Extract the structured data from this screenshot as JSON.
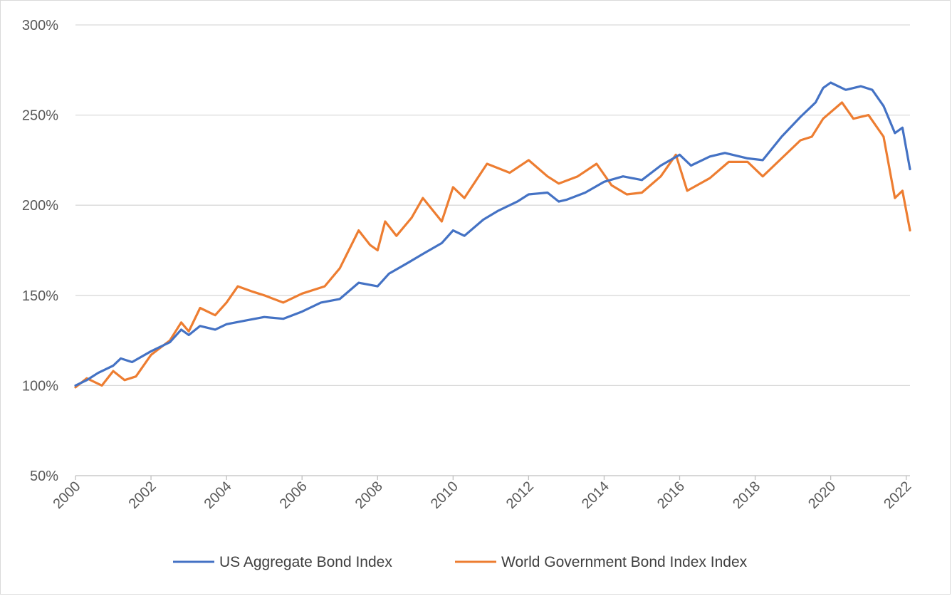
{
  "chart_data": {
    "type": "line",
    "title": "",
    "xlabel": "",
    "ylabel": "",
    "xlim": [
      2000,
      2022.1
    ],
    "ylim": [
      50,
      300
    ],
    "y_ticks": [
      {
        "value": 50,
        "label": "50%"
      },
      {
        "value": 100,
        "label": "100%"
      },
      {
        "value": 150,
        "label": "150%"
      },
      {
        "value": 200,
        "label": "200%"
      },
      {
        "value": 250,
        "label": "250%"
      },
      {
        "value": 300,
        "label": "300%"
      }
    ],
    "x_ticks": [
      {
        "value": 2000,
        "label": "2000"
      },
      {
        "value": 2002,
        "label": "2002"
      },
      {
        "value": 2004,
        "label": "2004"
      },
      {
        "value": 2006,
        "label": "2006"
      },
      {
        "value": 2008,
        "label": "2008"
      },
      {
        "value": 2010,
        "label": "2010"
      },
      {
        "value": 2012,
        "label": "2012"
      },
      {
        "value": 2014,
        "label": "2014"
      },
      {
        "value": 2016,
        "label": "2016"
      },
      {
        "value": 2018,
        "label": "2018"
      },
      {
        "value": 2020,
        "label": "2020"
      },
      {
        "value": 2022,
        "label": "2022"
      }
    ],
    "grid": "horizontal",
    "legend_position": "bottom",
    "series": [
      {
        "name": "US Aggregate Bond Index",
        "color": "#4472c4",
        "points": [
          [
            2000.0,
            100
          ],
          [
            2000.3,
            103
          ],
          [
            2000.6,
            107
          ],
          [
            2001.0,
            111
          ],
          [
            2001.2,
            115
          ],
          [
            2001.5,
            113
          ],
          [
            2002.0,
            119
          ],
          [
            2002.5,
            124
          ],
          [
            2002.8,
            131
          ],
          [
            2003.0,
            128
          ],
          [
            2003.3,
            133
          ],
          [
            2003.7,
            131
          ],
          [
            2004.0,
            134
          ],
          [
            2004.5,
            136
          ],
          [
            2005.0,
            138
          ],
          [
            2005.5,
            137
          ],
          [
            2006.0,
            141
          ],
          [
            2006.5,
            146
          ],
          [
            2007.0,
            148
          ],
          [
            2007.5,
            157
          ],
          [
            2008.0,
            155
          ],
          [
            2008.3,
            162
          ],
          [
            2008.8,
            168
          ],
          [
            2009.2,
            173
          ],
          [
            2009.7,
            179
          ],
          [
            2010.0,
            186
          ],
          [
            2010.3,
            183
          ],
          [
            2010.8,
            192
          ],
          [
            2011.2,
            197
          ],
          [
            2011.7,
            202
          ],
          [
            2012.0,
            206
          ],
          [
            2012.5,
            207
          ],
          [
            2012.8,
            202
          ],
          [
            2013.0,
            203
          ],
          [
            2013.5,
            207
          ],
          [
            2014.0,
            213
          ],
          [
            2014.5,
            216
          ],
          [
            2015.0,
            214
          ],
          [
            2015.5,
            222
          ],
          [
            2016.0,
            228
          ],
          [
            2016.3,
            222
          ],
          [
            2016.8,
            227
          ],
          [
            2017.2,
            229
          ],
          [
            2017.8,
            226
          ],
          [
            2018.2,
            225
          ],
          [
            2018.7,
            238
          ],
          [
            2019.2,
            249
          ],
          [
            2019.6,
            257
          ],
          [
            2019.8,
            265
          ],
          [
            2020.0,
            268
          ],
          [
            2020.4,
            264
          ],
          [
            2020.8,
            266
          ],
          [
            2021.1,
            264
          ],
          [
            2021.4,
            255
          ],
          [
            2021.7,
            240
          ],
          [
            2021.9,
            243
          ],
          [
            2022.1,
            220
          ]
        ]
      },
      {
        "name": "World Government Bond Index Index",
        "color": "#ed7d31",
        "points": [
          [
            2000.0,
            99
          ],
          [
            2000.3,
            104
          ],
          [
            2000.7,
            100
          ],
          [
            2001.0,
            108
          ],
          [
            2001.3,
            103
          ],
          [
            2001.6,
            105
          ],
          [
            2002.0,
            117
          ],
          [
            2002.5,
            125
          ],
          [
            2002.8,
            135
          ],
          [
            2003.0,
            130
          ],
          [
            2003.3,
            143
          ],
          [
            2003.7,
            139
          ],
          [
            2004.0,
            146
          ],
          [
            2004.3,
            155
          ],
          [
            2004.7,
            152
          ],
          [
            2005.0,
            150
          ],
          [
            2005.5,
            146
          ],
          [
            2006.0,
            151
          ],
          [
            2006.6,
            155
          ],
          [
            2007.0,
            165
          ],
          [
            2007.5,
            186
          ],
          [
            2007.8,
            178
          ],
          [
            2008.0,
            175
          ],
          [
            2008.2,
            191
          ],
          [
            2008.5,
            183
          ],
          [
            2008.9,
            193
          ],
          [
            2009.2,
            204
          ],
          [
            2009.7,
            191
          ],
          [
            2010.0,
            210
          ],
          [
            2010.3,
            204
          ],
          [
            2010.9,
            223
          ],
          [
            2011.5,
            218
          ],
          [
            2012.0,
            225
          ],
          [
            2012.5,
            216
          ],
          [
            2012.8,
            212
          ],
          [
            2013.3,
            216
          ],
          [
            2013.8,
            223
          ],
          [
            2014.2,
            211
          ],
          [
            2014.6,
            206
          ],
          [
            2015.0,
            207
          ],
          [
            2015.5,
            216
          ],
          [
            2015.9,
            228
          ],
          [
            2016.2,
            208
          ],
          [
            2016.8,
            215
          ],
          [
            2017.3,
            224
          ],
          [
            2017.8,
            224
          ],
          [
            2018.2,
            216
          ],
          [
            2018.7,
            226
          ],
          [
            2019.2,
            236
          ],
          [
            2019.5,
            238
          ],
          [
            2019.8,
            248
          ],
          [
            2020.3,
            257
          ],
          [
            2020.6,
            248
          ],
          [
            2021.0,
            250
          ],
          [
            2021.4,
            238
          ],
          [
            2021.7,
            204
          ],
          [
            2021.9,
            208
          ],
          [
            2022.1,
            186
          ]
        ]
      }
    ]
  }
}
